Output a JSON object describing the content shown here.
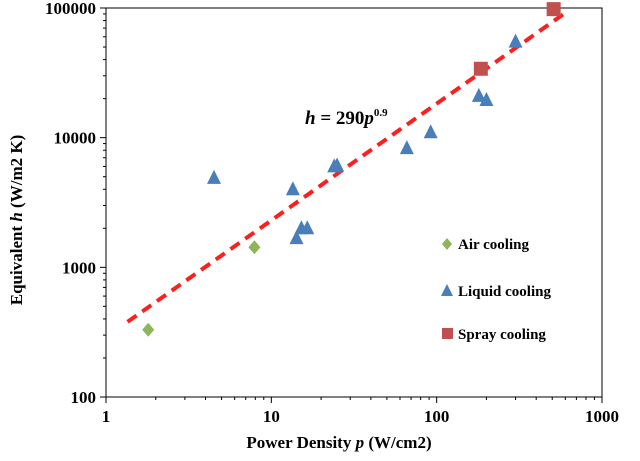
{
  "chart_data": {
    "type": "scatter",
    "xlabel": {
      "pre": "Power Density ",
      "var": "p",
      "post": " (W/cm2)"
    },
    "ylabel": {
      "pre": "Equivalent ",
      "var": "h",
      "post": " (W/m2 K)"
    },
    "x_scale": "log",
    "y_scale": "log",
    "xlim": [
      1,
      1000
    ],
    "ylim": [
      100,
      100000
    ],
    "x_ticks": [
      1,
      10,
      100,
      1000
    ],
    "x_tick_labels": [
      "1",
      "10",
      "100",
      "1000"
    ],
    "y_ticks": [
      100,
      1000,
      10000,
      100000
    ],
    "y_tick_labels": [
      "100",
      "1000",
      "10000",
      "100000"
    ],
    "grid": false,
    "legend_position": "right",
    "series": [
      {
        "name": "Air cooling",
        "marker": "diamond",
        "color": "#8db657",
        "points": [
          [
            1.8,
            330
          ],
          [
            7.9,
            1430
          ]
        ]
      },
      {
        "name": "Liquid cooling",
        "marker": "triangle",
        "color": "#4a7ebb",
        "points": [
          [
            4.5,
            4900
          ],
          [
            13.5,
            4000
          ],
          [
            14.2,
            1680
          ],
          [
            15.2,
            2000
          ],
          [
            16.5,
            2000
          ],
          [
            24.0,
            6000
          ],
          [
            25.0,
            6100
          ],
          [
            66.0,
            8300
          ],
          [
            92.0,
            11000
          ],
          [
            180.0,
            21000
          ],
          [
            200.0,
            19500
          ],
          [
            300.0,
            55000
          ]
        ]
      },
      {
        "name": "Spray cooling",
        "marker": "square",
        "color": "#c0504d",
        "points": [
          [
            185.0,
            34000
          ],
          [
            510.0,
            98000
          ]
        ]
      }
    ],
    "fit_line": {
      "coefficient": 290,
      "exponent": 0.9,
      "x_range": [
        1.35,
        600
      ],
      "color": "#ff1e1e",
      "label": {
        "var": "h",
        "mid": " = 290",
        "var2": "p",
        "exp": "0.9"
      }
    }
  }
}
